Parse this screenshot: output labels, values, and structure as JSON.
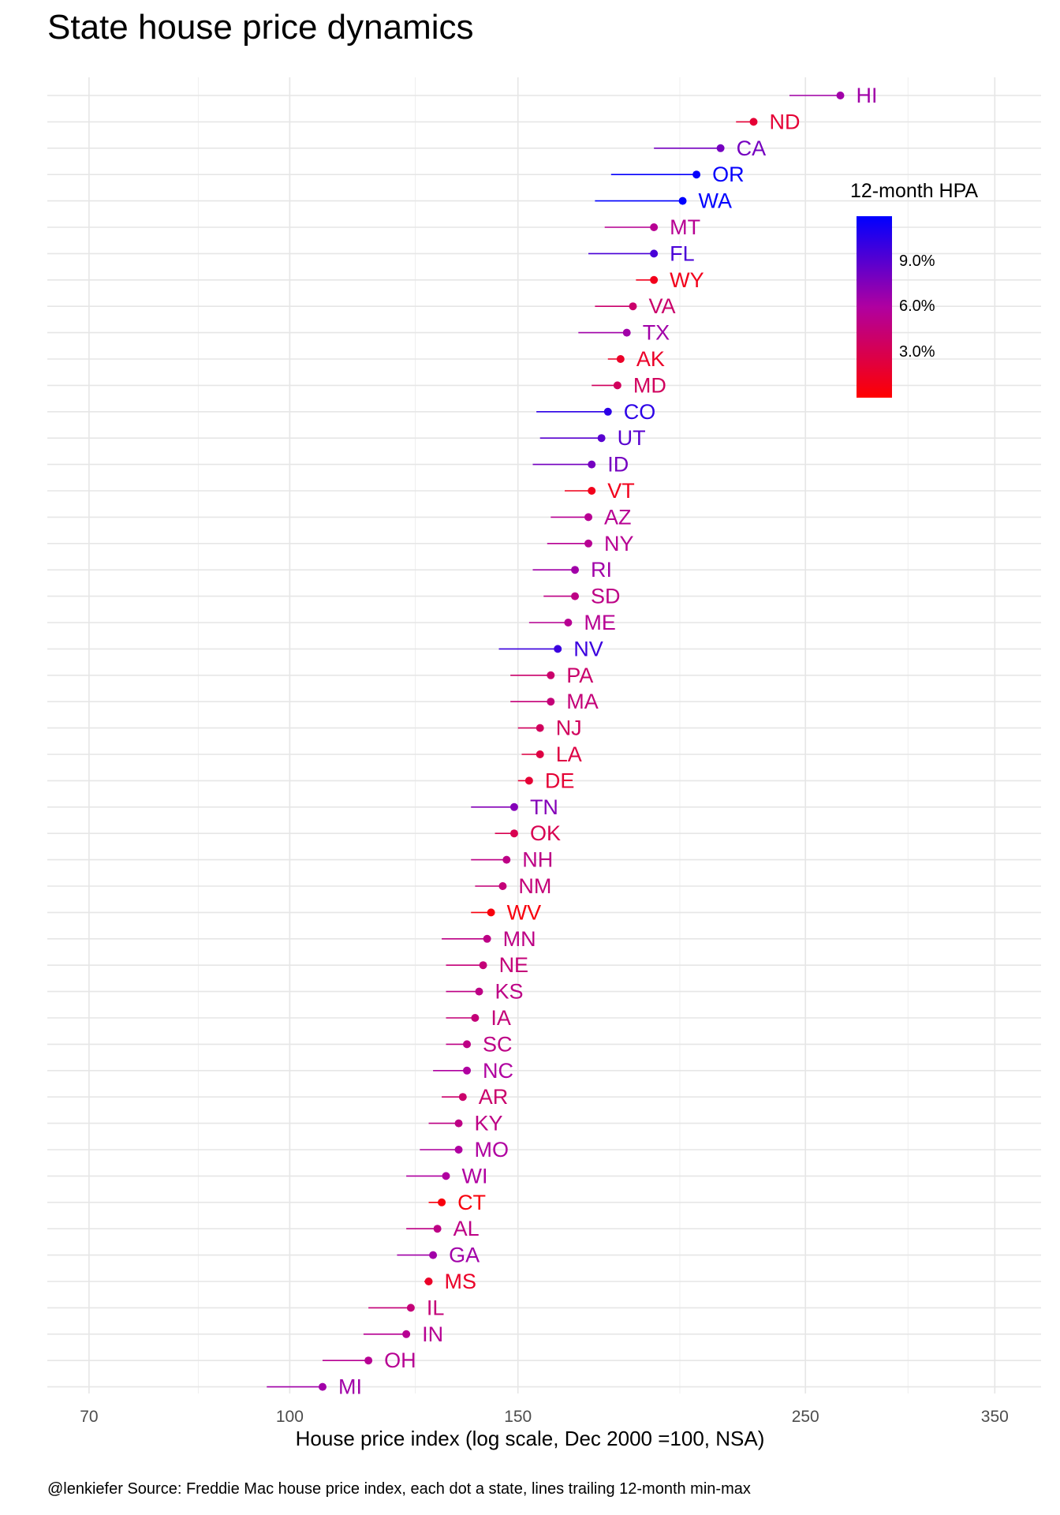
{
  "chart_data": {
    "type": "dot-range",
    "title": "State house price dynamics",
    "xlabel": "House price index (log scale, Dec 2000 =100, NSA)",
    "caption": "@lenkiefer Source: Freddie Mac house price index, each dot a state, lines trailing 12-month min-max",
    "x_scale": "log",
    "xlim": [
      65,
      380
    ],
    "xticks": [
      70,
      100,
      150,
      250,
      350
    ],
    "xtick_labels": [
      "70",
      "100",
      "150",
      "250",
      "350"
    ],
    "minor_gridlines": [
      85,
      125,
      200,
      300
    ],
    "grid": true,
    "legend": {
      "title": "12-month HPA",
      "position": "top-right",
      "range": [
        0.0,
        12.0
      ],
      "ticks": [
        3.0,
        6.0,
        9.0
      ],
      "tick_labels": [
        "3.0%",
        "6.0%",
        "9.0%"
      ],
      "low_color": "#ff0000",
      "high_color": "#0000ff"
    },
    "series": [
      {
        "state": "HI",
        "value": 266,
        "min": 243,
        "max": 266,
        "hpa": 6.5
      },
      {
        "state": "ND",
        "value": 228,
        "min": 221,
        "max": 228,
        "hpa": 2.0
      },
      {
        "state": "CA",
        "value": 215,
        "min": 191,
        "max": 215,
        "hpa": 8.0
      },
      {
        "state": "OR",
        "value": 206,
        "min": 177,
        "max": 206,
        "hpa": 11.8
      },
      {
        "state": "WA",
        "value": 201,
        "min": 172,
        "max": 201,
        "hpa": 12.5
      },
      {
        "state": "MT",
        "value": 191,
        "min": 175,
        "max": 191,
        "hpa": 5.5
      },
      {
        "state": "FL",
        "value": 191,
        "min": 170,
        "max": 191,
        "hpa": 9.5
      },
      {
        "state": "WY",
        "value": 191,
        "min": 185,
        "max": 191,
        "hpa": 1.0
      },
      {
        "state": "VA",
        "value": 184,
        "min": 172,
        "max": 184,
        "hpa": 4.0
      },
      {
        "state": "TX",
        "value": 182,
        "min": 167,
        "max": 182,
        "hpa": 6.5
      },
      {
        "state": "AK",
        "value": 180,
        "min": 176,
        "max": 180,
        "hpa": 1.5
      },
      {
        "state": "MD",
        "value": 179,
        "min": 171,
        "max": 179,
        "hpa": 3.5
      },
      {
        "state": "CO",
        "value": 176,
        "min": 155,
        "max": 176,
        "hpa": 10.5
      },
      {
        "state": "UT",
        "value": 174,
        "min": 156,
        "max": 174,
        "hpa": 9.0
      },
      {
        "state": "ID",
        "value": 171,
        "min": 154,
        "max": 171,
        "hpa": 8.0
      },
      {
        "state": "VT",
        "value": 171,
        "min": 163,
        "max": 171,
        "hpa": 1.0
      },
      {
        "state": "AZ",
        "value": 170,
        "min": 159,
        "max": 170,
        "hpa": 5.5
      },
      {
        "state": "NY",
        "value": 170,
        "min": 158,
        "max": 170,
        "hpa": 5.5
      },
      {
        "state": "RI",
        "value": 166,
        "min": 154,
        "max": 166,
        "hpa": 6.5
      },
      {
        "state": "SD",
        "value": 166,
        "min": 157,
        "max": 166,
        "hpa": 5.0
      },
      {
        "state": "ME",
        "value": 164,
        "min": 153,
        "max": 164,
        "hpa": 5.5
      },
      {
        "state": "NV",
        "value": 161,
        "min": 145,
        "max": 161,
        "hpa": 10.0
      },
      {
        "state": "PA",
        "value": 159,
        "min": 148,
        "max": 159,
        "hpa": 4.0
      },
      {
        "state": "MA",
        "value": 159,
        "min": 148,
        "max": 159,
        "hpa": 4.5
      },
      {
        "state": "NJ",
        "value": 156,
        "min": 150,
        "max": 156,
        "hpa": 3.5
      },
      {
        "state": "LA",
        "value": 156,
        "min": 151,
        "max": 156,
        "hpa": 2.5
      },
      {
        "state": "DE",
        "value": 153,
        "min": 150,
        "max": 153,
        "hpa": 2.0
      },
      {
        "state": "TN",
        "value": 149,
        "min": 138,
        "max": 149,
        "hpa": 7.5
      },
      {
        "state": "OK",
        "value": 149,
        "min": 144,
        "max": 149,
        "hpa": 3.0
      },
      {
        "state": "NH",
        "value": 147,
        "min": 138,
        "max": 147,
        "hpa": 5.0
      },
      {
        "state": "NM",
        "value": 146,
        "min": 139,
        "max": 146,
        "hpa": 4.5
      },
      {
        "state": "WV",
        "value": 143,
        "min": 138,
        "max": 143,
        "hpa": 0.5
      },
      {
        "state": "MN",
        "value": 142,
        "min": 131,
        "max": 142,
        "hpa": 5.0
      },
      {
        "state": "NE",
        "value": 141,
        "min": 132,
        "max": 141,
        "hpa": 4.5
      },
      {
        "state": "KS",
        "value": 140,
        "min": 132,
        "max": 140,
        "hpa": 5.0
      },
      {
        "state": "IA",
        "value": 139,
        "min": 132,
        "max": 139,
        "hpa": 4.5
      },
      {
        "state": "SC",
        "value": 137,
        "min": 132,
        "max": 137,
        "hpa": 5.0
      },
      {
        "state": "NC",
        "value": 137,
        "min": 129,
        "max": 137,
        "hpa": 6.0
      },
      {
        "state": "AR",
        "value": 136,
        "min": 131,
        "max": 136,
        "hpa": 4.0
      },
      {
        "state": "KY",
        "value": 135,
        "min": 128,
        "max": 135,
        "hpa": 5.0
      },
      {
        "state": "MO",
        "value": 135,
        "min": 126,
        "max": 135,
        "hpa": 6.0
      },
      {
        "state": "WI",
        "value": 132,
        "min": 123,
        "max": 132,
        "hpa": 6.0
      },
      {
        "state": "CT",
        "value": 131,
        "min": 128,
        "max": 131,
        "hpa": 0.5
      },
      {
        "state": "AL",
        "value": 130,
        "min": 123,
        "max": 130,
        "hpa": 5.0
      },
      {
        "state": "GA",
        "value": 129,
        "min": 121,
        "max": 129,
        "hpa": 6.5
      },
      {
        "state": "MS",
        "value": 128,
        "min": 127,
        "max": 128,
        "hpa": 1.5
      },
      {
        "state": "IL",
        "value": 124,
        "min": 115,
        "max": 124,
        "hpa": 4.5
      },
      {
        "state": "IN",
        "value": 123,
        "min": 114,
        "max": 123,
        "hpa": 5.5
      },
      {
        "state": "OH",
        "value": 115,
        "min": 106,
        "max": 115,
        "hpa": 5.5
      },
      {
        "state": "MI",
        "value": 106,
        "min": 96,
        "max": 106,
        "hpa": 6.5
      }
    ]
  }
}
